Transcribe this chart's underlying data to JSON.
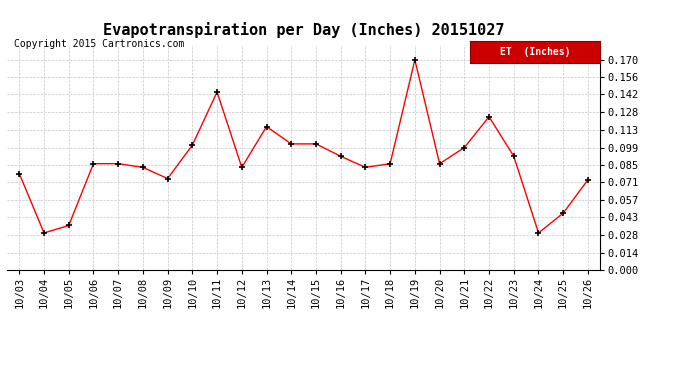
{
  "title": "Evapotranspiration per Day (Inches) 20151027",
  "copyright": "Copyright 2015 Cartronics.com",
  "legend_label": "ET  (Inches)",
  "x_labels": [
    "10/03",
    "10/04",
    "10/05",
    "10/06",
    "10/07",
    "10/08",
    "10/09",
    "10/10",
    "10/11",
    "10/12",
    "10/13",
    "10/14",
    "10/15",
    "10/16",
    "10/17",
    "10/18",
    "10/19",
    "10/20",
    "10/21",
    "10/22",
    "10/23",
    "10/24",
    "10/25",
    "10/26"
  ],
  "y_values": [
    0.078,
    0.03,
    0.036,
    0.086,
    0.086,
    0.083,
    0.074,
    0.101,
    0.144,
    0.083,
    0.116,
    0.102,
    0.102,
    0.092,
    0.083,
    0.086,
    0.17,
    0.086,
    0.099,
    0.124,
    0.092,
    0.03,
    0.046,
    0.073
  ],
  "line_color": "red",
  "marker_color": "black",
  "ylim": [
    0.0,
    0.182
  ],
  "yticks": [
    0.0,
    0.014,
    0.028,
    0.043,
    0.057,
    0.071,
    0.085,
    0.099,
    0.113,
    0.128,
    0.142,
    0.156,
    0.17
  ],
  "bg_color": "white",
  "grid_color": "#c8c8c8",
  "title_fontsize": 11,
  "copyright_fontsize": 7,
  "legend_bg": "#cc0000",
  "legend_text_color": "white",
  "tick_fontsize": 7.5
}
